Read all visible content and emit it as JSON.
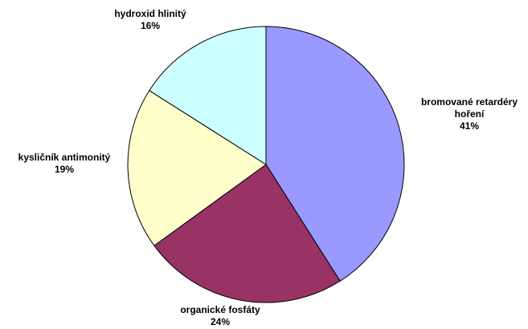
{
  "chart_data": {
    "type": "pie",
    "start_angle_deg": 90,
    "direction": "clockwise",
    "slices": [
      {
        "label_lines": [
          "bromované retardéry",
          "hoření"
        ],
        "percent_label": "41%",
        "value": 41,
        "color": "#9999ff"
      },
      {
        "label_lines": [
          "organické fosfáty"
        ],
        "percent_label": "24%",
        "value": 24,
        "color": "#993366"
      },
      {
        "label_lines": [
          "kysličník antimonitý"
        ],
        "percent_label": "19%",
        "value": 19,
        "color": "#ffffcc"
      },
      {
        "label_lines": [
          "hydroxid hlinitý"
        ],
        "percent_label": "16%",
        "value": 16,
        "color": "#ccffff"
      }
    ]
  }
}
